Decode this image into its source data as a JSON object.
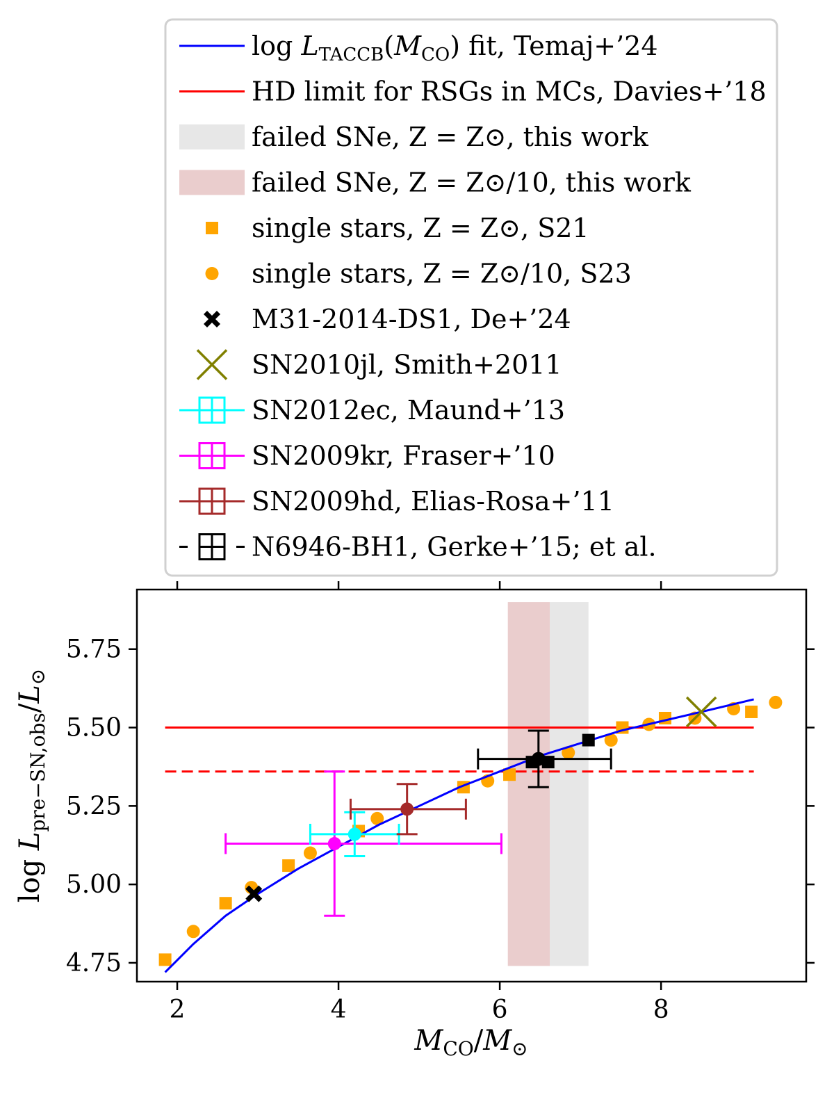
{
  "chart_data": {
    "type": "scatter",
    "xlabel": "M_CO / M_⊙",
    "ylabel": "log L_pre−SN,obs / L_⊙",
    "xlim": [
      1.5,
      9.8
    ],
    "ylim": [
      4.69,
      5.94
    ],
    "xticks": [
      2,
      4,
      6,
      8
    ],
    "yticks": [
      4.75,
      5.0,
      5.25,
      5.5,
      5.75
    ],
    "xtick_labels": [
      "2",
      "4",
      "6",
      "8"
    ],
    "ytick_labels": [
      "4.75",
      "5.00",
      "5.25",
      "5.50",
      "5.75"
    ],
    "legend_position": "above plot",
    "legend": [
      {
        "key": "fit",
        "label_main": "log L",
        "label_sub": "TACCB",
        "label_rest": "(M",
        "label_sub2": "CO",
        "label_tail": ") fit, Temaj+’24"
      },
      {
        "key": "hd",
        "label": "HD limit for RSGs in MCs, Davies+’18"
      },
      {
        "key": "fail_sun",
        "label": "failed SNe, Z = Z⊙, this work"
      },
      {
        "key": "fail_tenth",
        "label": "failed SNe, Z = Z⊙/10, this work"
      },
      {
        "key": "s21",
        "label": "single stars, Z = Z⊙, S21"
      },
      {
        "key": "s23",
        "label": "single stars, Z = Z⊙/10, S23"
      },
      {
        "key": "m31",
        "label": "M31-2014-DS1, De+’24"
      },
      {
        "key": "sn2010jl",
        "label": "SN2010jl, Smith+2011"
      },
      {
        "key": "sn2012ec",
        "label": "SN2012ec, Maund+’13"
      },
      {
        "key": "sn2009kr",
        "label": "SN2009kr, Fraser+’10"
      },
      {
        "key": "sn2009hd",
        "label": "SN2009hd, Elias-Rosa+’11"
      },
      {
        "key": "n6946",
        "label": "N6946-BH1, Gerke+’15; et al."
      }
    ],
    "colors": {
      "fit": "#0000ff",
      "hd": "#ff0000",
      "fail_sun": "#d3d3d3",
      "fail_tenth": "#d9a4a4",
      "single": "#ffa500",
      "m31": "#000000",
      "sn2010jl": "#808000",
      "sn2012ec": "#00ffff",
      "sn2009kr": "#ff00ff",
      "sn2009hd": "#a52a2a",
      "n6946": "#000000"
    },
    "fit_curve": {
      "x": [
        1.85,
        2.2,
        2.6,
        3.0,
        3.5,
        4.0,
        4.5,
        5.0,
        5.5,
        6.0,
        6.5,
        7.0,
        7.5,
        8.0,
        8.5,
        9.15
      ],
      "y": [
        4.72,
        4.81,
        4.9,
        4.97,
        5.05,
        5.12,
        5.19,
        5.25,
        5.31,
        5.36,
        5.41,
        5.45,
        5.49,
        5.52,
        5.55,
        5.59
      ]
    },
    "hd_limit": {
      "x": [
        1.85,
        9.15
      ],
      "y_solid": 5.5,
      "y_dashed": 5.36
    },
    "failed_sne_sun": {
      "x": [
        6.62,
        7.1
      ],
      "y": [
        4.74,
        5.9
      ]
    },
    "failed_sne_tenth": {
      "x": [
        6.1,
        6.62
      ],
      "y": [
        4.74,
        5.9
      ]
    },
    "single_stars_sun": {
      "x": [
        1.85,
        2.6,
        3.38,
        4.25,
        5.55,
        6.12,
        7.52,
        8.05,
        9.12
      ],
      "y": [
        4.76,
        4.94,
        5.06,
        5.17,
        5.31,
        5.35,
        5.5,
        5.53,
        5.55
      ]
    },
    "single_stars_tenth": {
      "x": [
        2.2,
        2.92,
        3.65,
        4.48,
        5.85,
        6.85,
        7.38,
        7.85,
        8.42,
        8.9,
        9.42
      ],
      "y": [
        4.85,
        4.99,
        5.1,
        5.21,
        5.33,
        5.42,
        5.46,
        5.51,
        5.53,
        5.56,
        5.58
      ]
    },
    "m31": {
      "x": 2.95,
      "y": 4.97
    },
    "sn2010jl": {
      "x": 8.5,
      "y": 5.55
    },
    "sn2012ec": {
      "x": 4.2,
      "y": 5.16,
      "xerr": [
        0.55,
        0.55
      ],
      "yerr": [
        0.07,
        0.07
      ]
    },
    "sn2009kr": {
      "x": 3.95,
      "y": 5.13,
      "xerr": [
        1.35,
        2.07
      ],
      "yerr": [
        0.23,
        0.23
      ]
    },
    "sn2009hd": {
      "x": 4.85,
      "y": 5.24,
      "xerr": [
        0.7,
        0.73
      ],
      "yerr": [
        0.08,
        0.08
      ]
    },
    "n6946": {
      "x": [
        6.4,
        6.48,
        6.6,
        7.1
      ],
      "y": [
        5.39,
        5.4,
        5.39,
        5.46
      ],
      "main": {
        "x": 6.48,
        "y": 5.4,
        "xerr": [
          0.75,
          0.9
        ],
        "yerr": [
          0.09,
          0.09
        ]
      }
    }
  }
}
